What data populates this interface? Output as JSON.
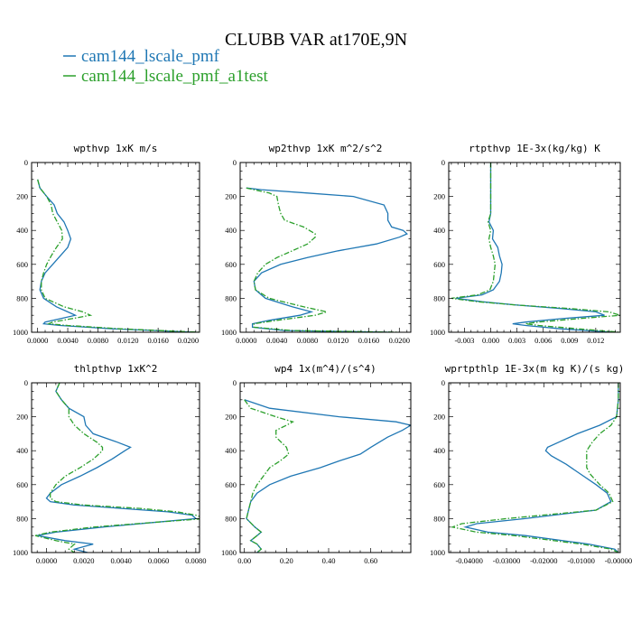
{
  "title": "CLUBB VAR at170E,9N",
  "legend": [
    {
      "label": "cam144_lscale_pmf",
      "color": "#1f77b4",
      "dash": "solid"
    },
    {
      "label": "cam144_lscale_pmf_a1test",
      "color": "#2ca02c",
      "dash": "dashdot"
    }
  ],
  "chart_data": [
    {
      "type": "line",
      "title": "wpthvp   1xK m/s",
      "xlim": [
        -0.0008,
        0.0215
      ],
      "ylim": [
        0,
        1000
      ],
      "xticks": [
        "0.0000",
        "0.0040",
        "0.0080",
        "0.0120",
        "0.0160",
        "0.0200"
      ],
      "xtick_values": [
        0,
        0.004,
        0.008,
        0.012,
        0.016,
        0.02
      ],
      "yticks": [
        "0",
        "200",
        "400",
        "600",
        "800",
        "1000"
      ],
      "series": [
        {
          "name": "cam144_lscale_pmf",
          "y": [
            100,
            150,
            200,
            250,
            300,
            350,
            400,
            450,
            500,
            550,
            600,
            650,
            700,
            750,
            800,
            850,
            880,
            900,
            920,
            940,
            950,
            960,
            980,
            1000
          ],
          "x": [
            0.0,
            0.0003,
            0.0012,
            0.0022,
            0.0026,
            0.0035,
            0.004,
            0.0044,
            0.004,
            0.003,
            0.002,
            0.001,
            0.0005,
            0.0003,
            0.0008,
            0.0025,
            0.004,
            0.005,
            0.003,
            0.001,
            0.0008,
            0.003,
            0.01,
            0.021
          ]
        },
        {
          "name": "cam144_lscale_pmf_a1test",
          "y": [
            100,
            150,
            200,
            250,
            300,
            350,
            400,
            450,
            500,
            550,
            600,
            650,
            700,
            750,
            800,
            850,
            880,
            900,
            920,
            940,
            950,
            960,
            980,
            1000
          ],
          "x": [
            0.0,
            0.0003,
            0.0012,
            0.0018,
            0.002,
            0.0026,
            0.0032,
            0.0033,
            0.0025,
            0.0018,
            0.0012,
            0.0008,
            0.0005,
            0.0005,
            0.001,
            0.0035,
            0.006,
            0.007,
            0.0045,
            0.002,
            0.0015,
            0.004,
            0.011,
            0.0215
          ]
        }
      ]
    },
    {
      "type": "line",
      "title": "wp2thvp   1xK m^2/s^2",
      "xlim": [
        -0.0008,
        0.0215
      ],
      "ylim": [
        0,
        1000
      ],
      "xticks": [
        "0.0000",
        "0.0040",
        "0.0080",
        "0.0120",
        "0.0160",
        "0.0200"
      ],
      "xtick_values": [
        0,
        0.004,
        0.008,
        0.012,
        0.016,
        0.02
      ],
      "yticks": [
        "0",
        "200",
        "400",
        "600",
        "800",
        "1000"
      ],
      "series": [
        {
          "name": "cam144_lscale_pmf",
          "y": [
            150,
            160,
            180,
            200,
            250,
            300,
            340,
            380,
            400,
            420,
            440,
            480,
            520,
            560,
            600,
            650,
            700,
            750,
            800,
            850,
            880,
            900,
            930,
            950,
            970,
            990,
            1000
          ],
          "x": [
            0.0,
            0.002,
            0.008,
            0.014,
            0.018,
            0.0185,
            0.0185,
            0.019,
            0.0205,
            0.021,
            0.02,
            0.017,
            0.012,
            0.008,
            0.0045,
            0.002,
            0.001,
            0.0012,
            0.0025,
            0.006,
            0.0085,
            0.007,
            0.003,
            0.0008,
            0.0008,
            0.005,
            0.019
          ]
        },
        {
          "name": "cam144_lscale_pmf_a1test",
          "y": [
            150,
            160,
            180,
            200,
            250,
            300,
            340,
            380,
            420,
            440,
            480,
            520,
            560,
            600,
            650,
            700,
            750,
            800,
            850,
            880,
            900,
            930,
            950,
            970,
            990,
            1000
          ],
          "x": [
            0.0,
            0.001,
            0.003,
            0.004,
            0.0042,
            0.0045,
            0.005,
            0.0075,
            0.009,
            0.009,
            0.008,
            0.006,
            0.004,
            0.0025,
            0.0015,
            0.001,
            0.0012,
            0.003,
            0.0075,
            0.0105,
            0.009,
            0.004,
            0.001,
            0.001,
            0.006,
            0.02
          ]
        }
      ]
    },
    {
      "type": "line",
      "title": "rtpthvp   1E-3x(kg/kg) K",
      "xlim": [
        -0.0048,
        0.0148
      ],
      "ylim": [
        0,
        1000
      ],
      "xticks": [
        "-0.003",
        "0.000",
        "0.003",
        "0.006",
        "0.009",
        "0.012"
      ],
      "xtick_values": [
        -0.003,
        0,
        0.003,
        0.006,
        0.009,
        0.012
      ],
      "yticks": [
        "0",
        "200",
        "400",
        "600",
        "800",
        "1000"
      ],
      "series": [
        {
          "name": "cam144_lscale_pmf",
          "y": [
            0,
            100,
            200,
            300,
            350,
            400,
            450,
            500,
            550,
            600,
            650,
            700,
            750,
            780,
            800,
            820,
            840,
            860,
            880,
            900,
            920,
            940,
            950,
            960,
            980,
            1000
          ],
          "x": [
            0.0,
            0.0,
            0.0,
            0.0,
            -0.0002,
            0.0003,
            0.0002,
            0.0008,
            0.001,
            0.0013,
            0.0012,
            0.001,
            0.0003,
            -0.001,
            -0.004,
            -0.001,
            0.003,
            0.008,
            0.012,
            0.013,
            0.008,
            0.004,
            0.0025,
            0.004,
            0.008,
            0.014
          ]
        },
        {
          "name": "cam144_lscale_pmf_a1test",
          "y": [
            0,
            100,
            200,
            300,
            350,
            400,
            450,
            500,
            550,
            600,
            650,
            700,
            750,
            780,
            800,
            820,
            840,
            860,
            880,
            900,
            920,
            940,
            950,
            960,
            980,
            1000
          ],
          "x": [
            0.0,
            0.0,
            0.0,
            0.0,
            -0.0003,
            0.0,
            -0.0002,
            0.0,
            0.0003,
            0.0005,
            0.0004,
            0.0003,
            -0.0001,
            -0.0015,
            -0.0045,
            -0.0015,
            0.003,
            0.009,
            0.0135,
            0.0148,
            0.01,
            0.0055,
            0.004,
            0.0055,
            0.01,
            0.0148
          ]
        }
      ]
    },
    {
      "type": "line",
      "title": "thlpthvp   1xK^2",
      "xlim": [
        -0.0008,
        0.0082
      ],
      "ylim": [
        0,
        1000
      ],
      "xticks": [
        "0.0000",
        "0.0020",
        "0.0040",
        "0.0060",
        "0.0080"
      ],
      "xtick_values": [
        0,
        0.002,
        0.004,
        0.006,
        0.008
      ],
      "yticks": [
        "0",
        "200",
        "400",
        "600",
        "800",
        "1000"
      ],
      "series": [
        {
          "name": "cam144_lscale_pmf",
          "y": [
            0,
            50,
            100,
            150,
            200,
            250,
            300,
            350,
            380,
            400,
            450,
            500,
            550,
            600,
            650,
            680,
            700,
            720,
            740,
            760,
            780,
            800,
            820,
            850,
            880,
            900,
            930,
            950,
            980,
            1000
          ],
          "x": [
            0.0007,
            0.0005,
            0.0008,
            0.0012,
            0.002,
            0.0021,
            0.0025,
            0.0038,
            0.0045,
            0.0042,
            0.0035,
            0.0027,
            0.0018,
            0.0008,
            0.0002,
            0.0,
            0.0002,
            0.0015,
            0.004,
            0.0065,
            0.0078,
            0.008,
            0.006,
            0.003,
            0.0005,
            -0.0005,
            0.001,
            0.0025,
            0.0015,
            0.0022
          ]
        },
        {
          "name": "cam144_lscale_pmf_a1test",
          "y": [
            0,
            50,
            100,
            150,
            200,
            250,
            300,
            350,
            380,
            400,
            450,
            500,
            550,
            600,
            650,
            680,
            700,
            720,
            740,
            760,
            780,
            800,
            820,
            850,
            880,
            900,
            930,
            950,
            980,
            1000
          ],
          "x": [
            0.0007,
            0.0005,
            0.0008,
            0.0012,
            0.0012,
            0.0015,
            0.002,
            0.0027,
            0.003,
            0.003,
            0.0025,
            0.0018,
            0.001,
            0.0005,
            0.0002,
            0.0002,
            0.0005,
            0.002,
            0.005,
            0.007,
            0.008,
            0.0085,
            0.006,
            0.0025,
            0.0002,
            -0.0006,
            0.0005,
            0.0015,
            0.0012,
            0.0015
          ]
        }
      ]
    },
    {
      "type": "line",
      "title": "wp4   1x(m^4)/(s^4)",
      "xlim": [
        -0.02,
        0.79
      ],
      "ylim": [
        0,
        1000
      ],
      "xticks": [
        "0.00",
        "0.20",
        "0.40",
        "0.60"
      ],
      "xtick_values": [
        0,
        0.2,
        0.4,
        0.6
      ],
      "yticks": [
        "0",
        "200",
        "400",
        "600",
        "800",
        "1000"
      ],
      "series": [
        {
          "name": "cam144_lscale_pmf",
          "y": [
            100,
            150,
            200,
            230,
            250,
            280,
            320,
            380,
            420,
            460,
            500,
            550,
            600,
            650,
            700,
            750,
            800,
            850,
            880,
            900,
            930,
            950,
            980,
            1000
          ],
          "x": [
            0.0,
            0.12,
            0.45,
            0.72,
            0.79,
            0.75,
            0.68,
            0.6,
            0.55,
            0.45,
            0.36,
            0.22,
            0.12,
            0.06,
            0.03,
            0.02,
            0.01,
            0.05,
            0.08,
            0.06,
            0.03,
            0.06,
            0.08,
            0.06
          ]
        },
        {
          "name": "cam144_lscale_pmf_a1test",
          "y": [
            100,
            150,
            200,
            230,
            250,
            280,
            320,
            380,
            420,
            460,
            500,
            550,
            600,
            650,
            700,
            750,
            800,
            850,
            880,
            900,
            930,
            950,
            980,
            1000
          ],
          "x": [
            0.0,
            0.03,
            0.15,
            0.23,
            0.2,
            0.15,
            0.15,
            0.2,
            0.21,
            0.17,
            0.12,
            0.09,
            0.06,
            0.04,
            0.03,
            0.02,
            0.01,
            0.05,
            0.08,
            0.06,
            0.03,
            0.06,
            0.08,
            0.06
          ]
        }
      ]
    },
    {
      "type": "line",
      "title": "wprtpthlp   1E-3x(m kg K)/(s kg)",
      "xlim": [
        -0.0455,
        0.0005
      ],
      "ylim": [
        0,
        1000
      ],
      "xticks": [
        "-0.04000",
        "-0.03000",
        "-0.02000",
        "-0.01000",
        "-0.00000"
      ],
      "xtick_values": [
        -0.04,
        -0.03,
        -0.02,
        -0.01,
        0
      ],
      "yticks": [
        "0",
        "200",
        "400",
        "600",
        "800",
        "1000"
      ],
      "series": [
        {
          "name": "cam144_lscale_pmf",
          "y": [
            0,
            100,
            200,
            250,
            300,
            350,
            380,
            400,
            430,
            480,
            540,
            600,
            650,
            700,
            750,
            800,
            830,
            850,
            880,
            900,
            950,
            980,
            1000
          ],
          "x": [
            0.0,
            0.0,
            -0.0005,
            -0.005,
            -0.011,
            -0.016,
            -0.019,
            -0.0195,
            -0.018,
            -0.014,
            -0.01,
            -0.006,
            -0.003,
            -0.002,
            -0.006,
            -0.025,
            -0.038,
            -0.041,
            -0.035,
            -0.025,
            -0.008,
            -0.001,
            0.0
          ]
        },
        {
          "name": "cam144_lscale_pmf_a1test",
          "y": [
            0,
            100,
            200,
            250,
            300,
            350,
            400,
            450,
            500,
            540,
            600,
            650,
            700,
            750,
            800,
            830,
            850,
            880,
            900,
            950,
            980,
            1000
          ],
          "x": [
            0.0,
            0.0,
            -0.0005,
            -0.002,
            -0.005,
            -0.007,
            -0.0085,
            -0.0085,
            -0.0085,
            -0.0075,
            -0.005,
            -0.0025,
            -0.0015,
            -0.006,
            -0.03,
            -0.042,
            -0.0445,
            -0.038,
            -0.028,
            -0.01,
            -0.002,
            0.0
          ]
        }
      ]
    }
  ]
}
